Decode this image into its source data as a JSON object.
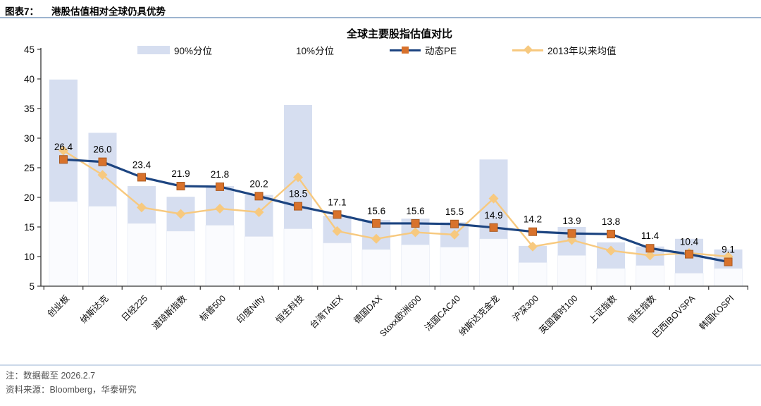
{
  "header": {
    "prefix": "图表7：",
    "title": "港股估值相对全球仍具优势"
  },
  "chart": {
    "title": "全球主要股指估值对比",
    "legend": {
      "p90": "90%分位",
      "p10": "10%分位",
      "pe": "动态PE",
      "mean": "2013年以来均值"
    }
  },
  "footer": {
    "note": "注：数据截至 2026.2.7",
    "source": "资料来源：Bloomberg，华泰研究"
  },
  "colors": {
    "bar": "#d6def0",
    "sub_bar": "#fafbfe",
    "sub_bar_edge": "#eef1f8",
    "pe_line": "#1c4480",
    "pe_marker": "#d8722c",
    "pe_marker_edge": "#aa591f",
    "mean_line": "#f7c97f",
    "axis": "#333333",
    "label_text": "#0d0d0d",
    "rule_top": "#9db4cf",
    "rule_bottom": "#ccd9ea"
  },
  "chart_data": {
    "type": "bar",
    "subtype": "floating percentile range bars (10%-90%) with two overlaid line series; PE values data-labeled",
    "title": "全球主要股指估值对比",
    "categories": [
      "创业板",
      "纳斯达克",
      "日经225",
      "道琼斯指数",
      "标普500",
      "印度Nifty",
      "恒生科技",
      "台湾TAIEX",
      "德国DAX",
      "Stoxx欧洲600",
      "法国CAC40",
      "纳斯达克金龙",
      "沪深300",
      "英国富时100",
      "上证指数",
      "恒生指数",
      "巴西IBOVSPA",
      "韩国KOSPI"
    ],
    "series": [
      {
        "name": "90%分位",
        "values": [
          39.9,
          30.9,
          21.9,
          20.1,
          21.9,
          20.4,
          35.6,
          16.9,
          16.2,
          16.4,
          15.8,
          26.4,
          11.8,
          15.0,
          12.4,
          11.7,
          13.0,
          11.2
        ]
      },
      {
        "name": "10%分位",
        "values": [
          19.3,
          18.5,
          15.6,
          14.3,
          15.3,
          13.4,
          14.7,
          12.3,
          11.2,
          12.0,
          11.6,
          13.0,
          9.0,
          10.2,
          8.0,
          8.5,
          7.2,
          8.0
        ]
      },
      {
        "name": "动态PE",
        "values": [
          26.4,
          26.0,
          23.4,
          21.9,
          21.8,
          20.2,
          18.5,
          17.1,
          15.6,
          15.6,
          15.5,
          14.9,
          14.2,
          13.9,
          13.8,
          11.4,
          10.4,
          9.1
        ]
      },
      {
        "name": "2013年以来均值",
        "values": [
          27.9,
          23.8,
          18.3,
          17.2,
          18.1,
          17.5,
          23.4,
          14.3,
          13.0,
          14.1,
          13.7,
          19.8,
          11.7,
          12.8,
          11.0,
          10.2,
          10.6,
          10.0
        ]
      }
    ],
    "data_labels_series": "动态PE",
    "data_labels": [
      "26.4",
      "26.0",
      "23.4",
      "21.9",
      "21.8",
      "20.2",
      "18.5",
      "17.1",
      "15.6",
      "15.6",
      "15.5",
      "14.9",
      "14.2",
      "13.9",
      "13.8",
      "11.4",
      "10.4",
      "9.1"
    ],
    "xlabel": "",
    "ylabel": "",
    "ylim": [
      5,
      45
    ],
    "yticks": [
      5,
      10,
      15,
      20,
      25,
      30,
      35,
      40,
      45
    ],
    "grid": false,
    "legend_position": "top"
  }
}
